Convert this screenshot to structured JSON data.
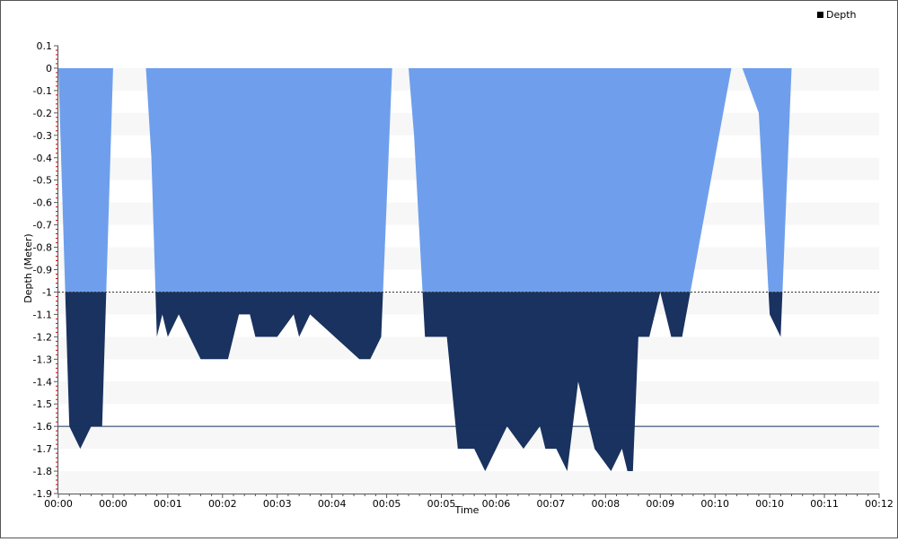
{
  "chart_data": {
    "type": "area",
    "title": "",
    "xlabel": "Time",
    "ylabel": "Depth (Meter)",
    "legend": {
      "entries": [
        "Depth"
      ],
      "placement": "top-right"
    },
    "grid": "horizontal bands",
    "ylim": [
      -1.9,
      0.1
    ],
    "yticks": [
      "0.1",
      "0",
      "-0.1",
      "-0.2",
      "-0.3",
      "-0.4",
      "-0.5",
      "-0.6",
      "-0.7",
      "-0.8",
      "-0.9",
      "-1",
      "-1.1",
      "-1.2",
      "-1.3",
      "-1.4",
      "-1.5",
      "-1.6",
      "-1.7",
      "-1.8",
      "-1.9"
    ],
    "xticks": [
      "00:00",
      "00:00",
      "00:01",
      "00:02",
      "00:03",
      "00:04",
      "00:05",
      "00:05",
      "00:06",
      "00:07",
      "00:08",
      "00:09",
      "00:10",
      "00:10",
      "00:11",
      "00:12"
    ],
    "xlim": [
      0,
      15
    ],
    "reference_lines": [
      {
        "y": -1.0,
        "style": "dotted"
      },
      {
        "y": -1.6,
        "style": "solid"
      }
    ],
    "colors": {
      "shallow": "#6f9fec",
      "deep": "#19325f",
      "band": "#f7f7f7",
      "axis_tick": "#cc0000"
    },
    "series": [
      {
        "name": "Depth",
        "x": [
          0,
          0.05,
          0.2,
          0.4,
          0.6,
          0.8,
          1.0,
          1.6,
          1.7,
          1.8,
          1.9,
          2.0,
          2.2,
          2.4,
          2.6,
          2.8,
          3.0,
          3.1,
          3.3,
          3.5,
          3.6,
          3.8,
          4.0,
          4.3,
          4.4,
          4.6,
          5.5,
          5.7,
          5.9,
          6.1,
          6.4,
          6.5,
          6.7,
          6.9,
          7.1,
          7.3,
          7.5,
          7.6,
          7.8,
          8.0,
          8.2,
          8.5,
          8.8,
          8.9,
          9.1,
          9.3,
          9.5,
          9.6,
          9.8,
          10.1,
          10.3,
          10.4,
          10.5,
          10.6,
          10.8,
          11.0,
          11.2,
          11.4,
          12.3,
          12.5,
          12.8,
          13.0,
          13.2,
          13.4,
          13.7,
          14.1,
          14.3,
          14.6,
          15.0
        ],
        "y": [
          0,
          -0.4,
          -1.6,
          -1.7,
          -1.6,
          -1.6,
          0,
          0,
          -0.4,
          -1.2,
          -1.1,
          -1.2,
          -1.1,
          -1.2,
          -1.3,
          -1.3,
          -1.3,
          -1.3,
          -1.1,
          -1.1,
          -1.2,
          -1.2,
          -1.2,
          -1.1,
          -1.2,
          -1.1,
          -1.3,
          -1.3,
          -1.2,
          0,
          0,
          -0.3,
          -1.2,
          -1.2,
          -1.2,
          -1.7,
          -1.7,
          -1.7,
          -1.8,
          -1.7,
          -1.6,
          -1.7,
          -1.6,
          -1.7,
          -1.7,
          -1.8,
          -1.4,
          -1.5,
          -1.7,
          -1.8,
          -1.7,
          -1.8,
          -1.8,
          -1.2,
          -1.2,
          -1.0,
          -1.2,
          -1.2,
          0,
          0,
          -0.2,
          -1.1,
          -1.2,
          0,
          0,
          0,
          0,
          0,
          0
        ]
      }
    ]
  }
}
